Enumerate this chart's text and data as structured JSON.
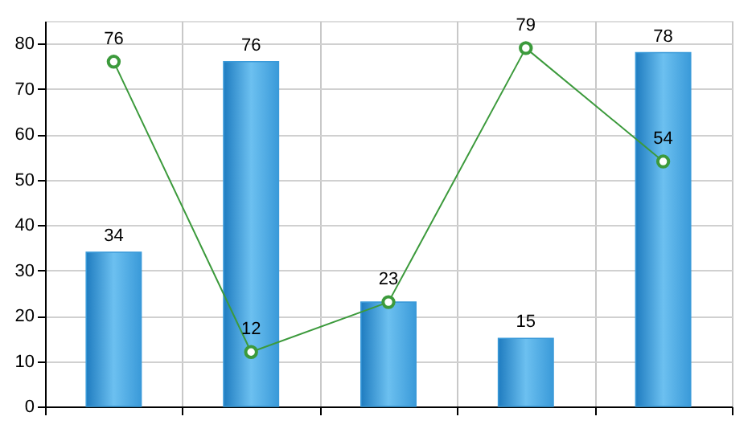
{
  "chart_data": {
    "type": "bar",
    "categories": [
      null,
      null,
      null,
      null,
      null
    ],
    "series": [
      {
        "color": "#3a9ad9",
        "values": [
          34,
          76,
          23,
          15,
          78
        ],
        "value_labels": [
          "34",
          "76",
          null,
          "15",
          "78"
        ]
      },
      {
        "type": "line",
        "color": "#3c9a3c",
        "values": [
          76,
          12,
          23,
          79,
          54
        ],
        "marker": "circle",
        "line_style": "solid",
        "value_labels": [
          "76",
          "12",
          "23",
          "79",
          "54"
        ]
      }
    ],
    "ylim": [
      0,
      85
    ],
    "yticks": [
      0,
      10,
      20,
      30,
      40,
      50,
      60,
      70,
      80
    ],
    "grid": true,
    "tick_labels": "y"
  }
}
